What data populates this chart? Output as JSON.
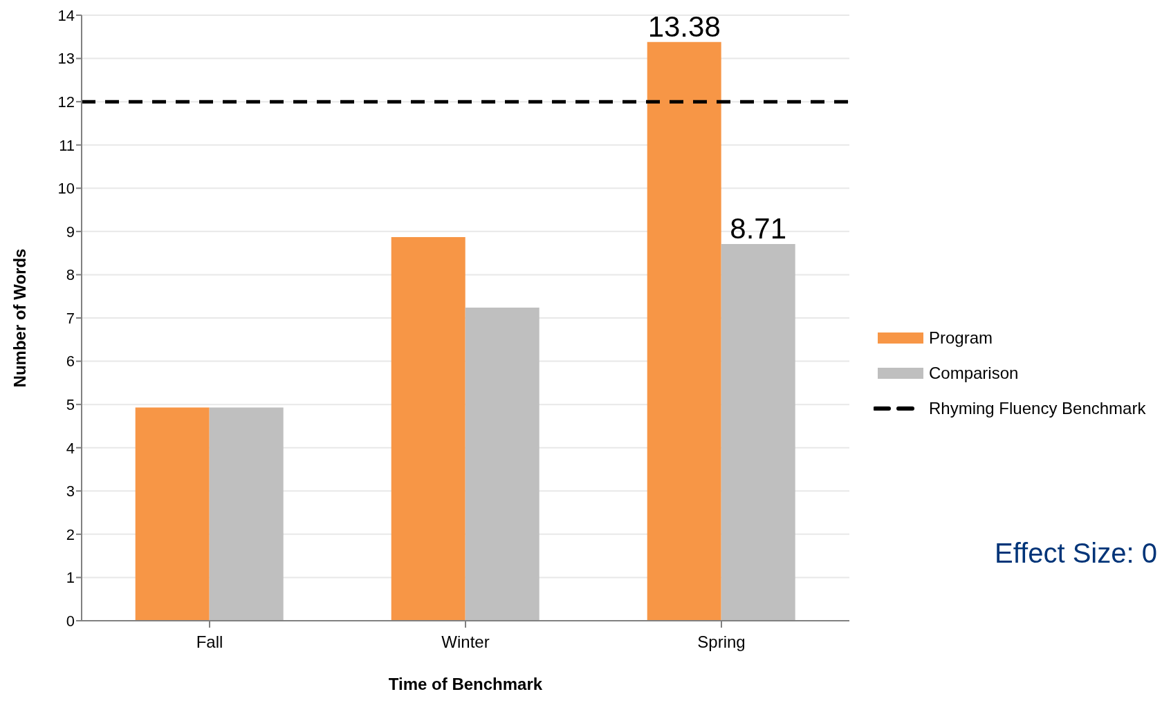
{
  "chart_data": {
    "type": "bar",
    "xlabel": "Time of Benchmark",
    "ylabel": "Number of Words",
    "categories": [
      "Fall",
      "Winter",
      "Spring"
    ],
    "series": [
      {
        "name": "Program",
        "color": "#f79646",
        "values": [
          4.93,
          8.87,
          13.38
        ],
        "value_labels": [
          null,
          null,
          "13.38"
        ]
      },
      {
        "name": "Comparison",
        "color": "#bfbfbf",
        "values": [
          4.93,
          7.24,
          8.71
        ],
        "value_labels": [
          null,
          null,
          "8.71"
        ]
      }
    ],
    "ylim": [
      0,
      14
    ],
    "yticks": [
      0,
      1,
      2,
      3,
      4,
      5,
      6,
      7,
      8,
      9,
      10,
      11,
      12,
      13,
      14
    ],
    "grid": "y",
    "legend": "right",
    "ref_lines": [
      {
        "axis": "y",
        "value": 12,
        "label": "Rhyming Fluency Benchmark",
        "color": "#000000",
        "line_style": "dashed"
      }
    ],
    "annotations": [
      "Effect Size: 0"
    ]
  }
}
